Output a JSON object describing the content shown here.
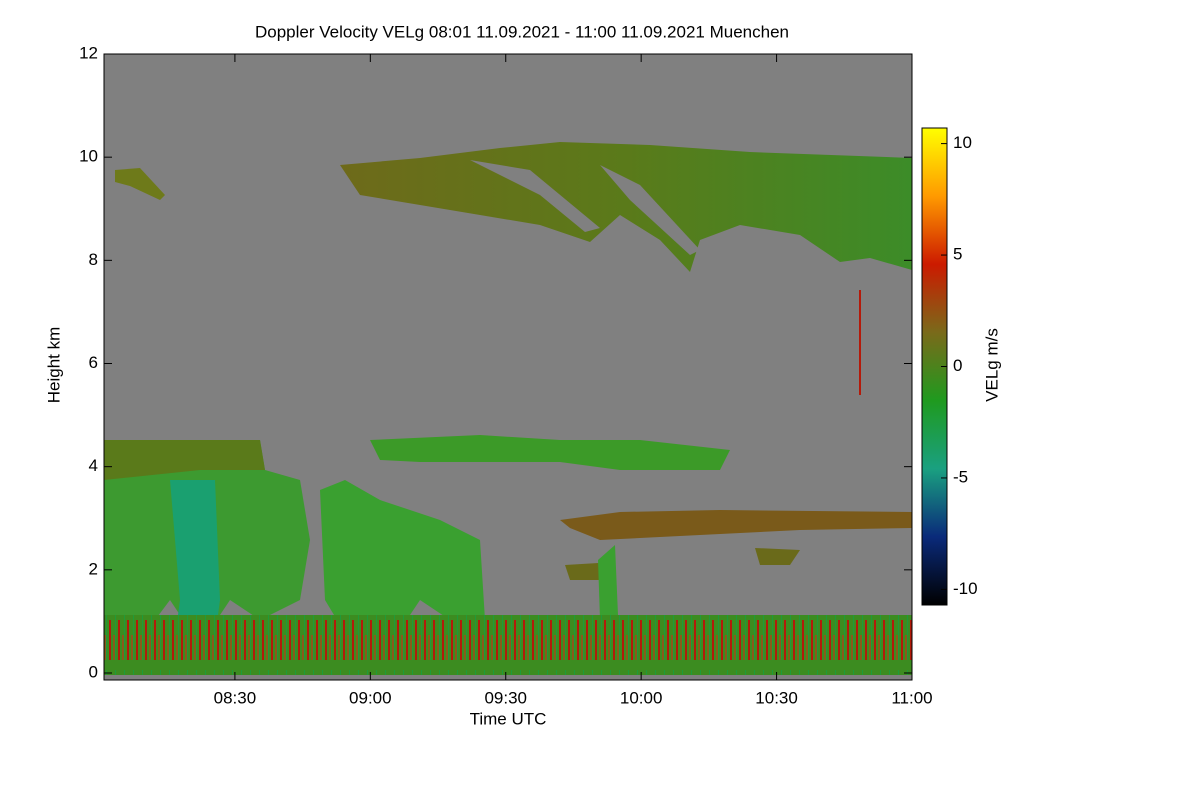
{
  "chart_data": {
    "type": "heatmap",
    "title": "Doppler Velocity VELg   08:01 11.09.2021 - 11:00 11.09.2021 Muenchen",
    "x_label": "Time UTC",
    "y_label": "Height km",
    "xlim": [
      481,
      660
    ],
    "xticks": [
      {
        "value": 510,
        "label": "08:30"
      },
      {
        "value": 540,
        "label": "09:00"
      },
      {
        "value": 570,
        "label": "09:30"
      },
      {
        "value": 600,
        "label": "10:00"
      },
      {
        "value": 630,
        "label": "10:30"
      },
      {
        "value": 660,
        "label": "11:00"
      }
    ],
    "ylim": [
      0,
      12
    ],
    "yticks": [
      0,
      2,
      4,
      6,
      8,
      10,
      12
    ],
    "colorbar": {
      "label": "VELg m/s",
      "lim": [
        -10.7,
        10.7
      ],
      "ticks": [
        -10,
        -5,
        0,
        5,
        10
      ],
      "colormap": [
        "#000000",
        "#0a2a7a",
        "#1aa080",
        "#1f9a1f",
        "#7a6a1a",
        "#cc1a00",
        "#ff9a00",
        "#ffff00"
      ]
    }
  }
}
